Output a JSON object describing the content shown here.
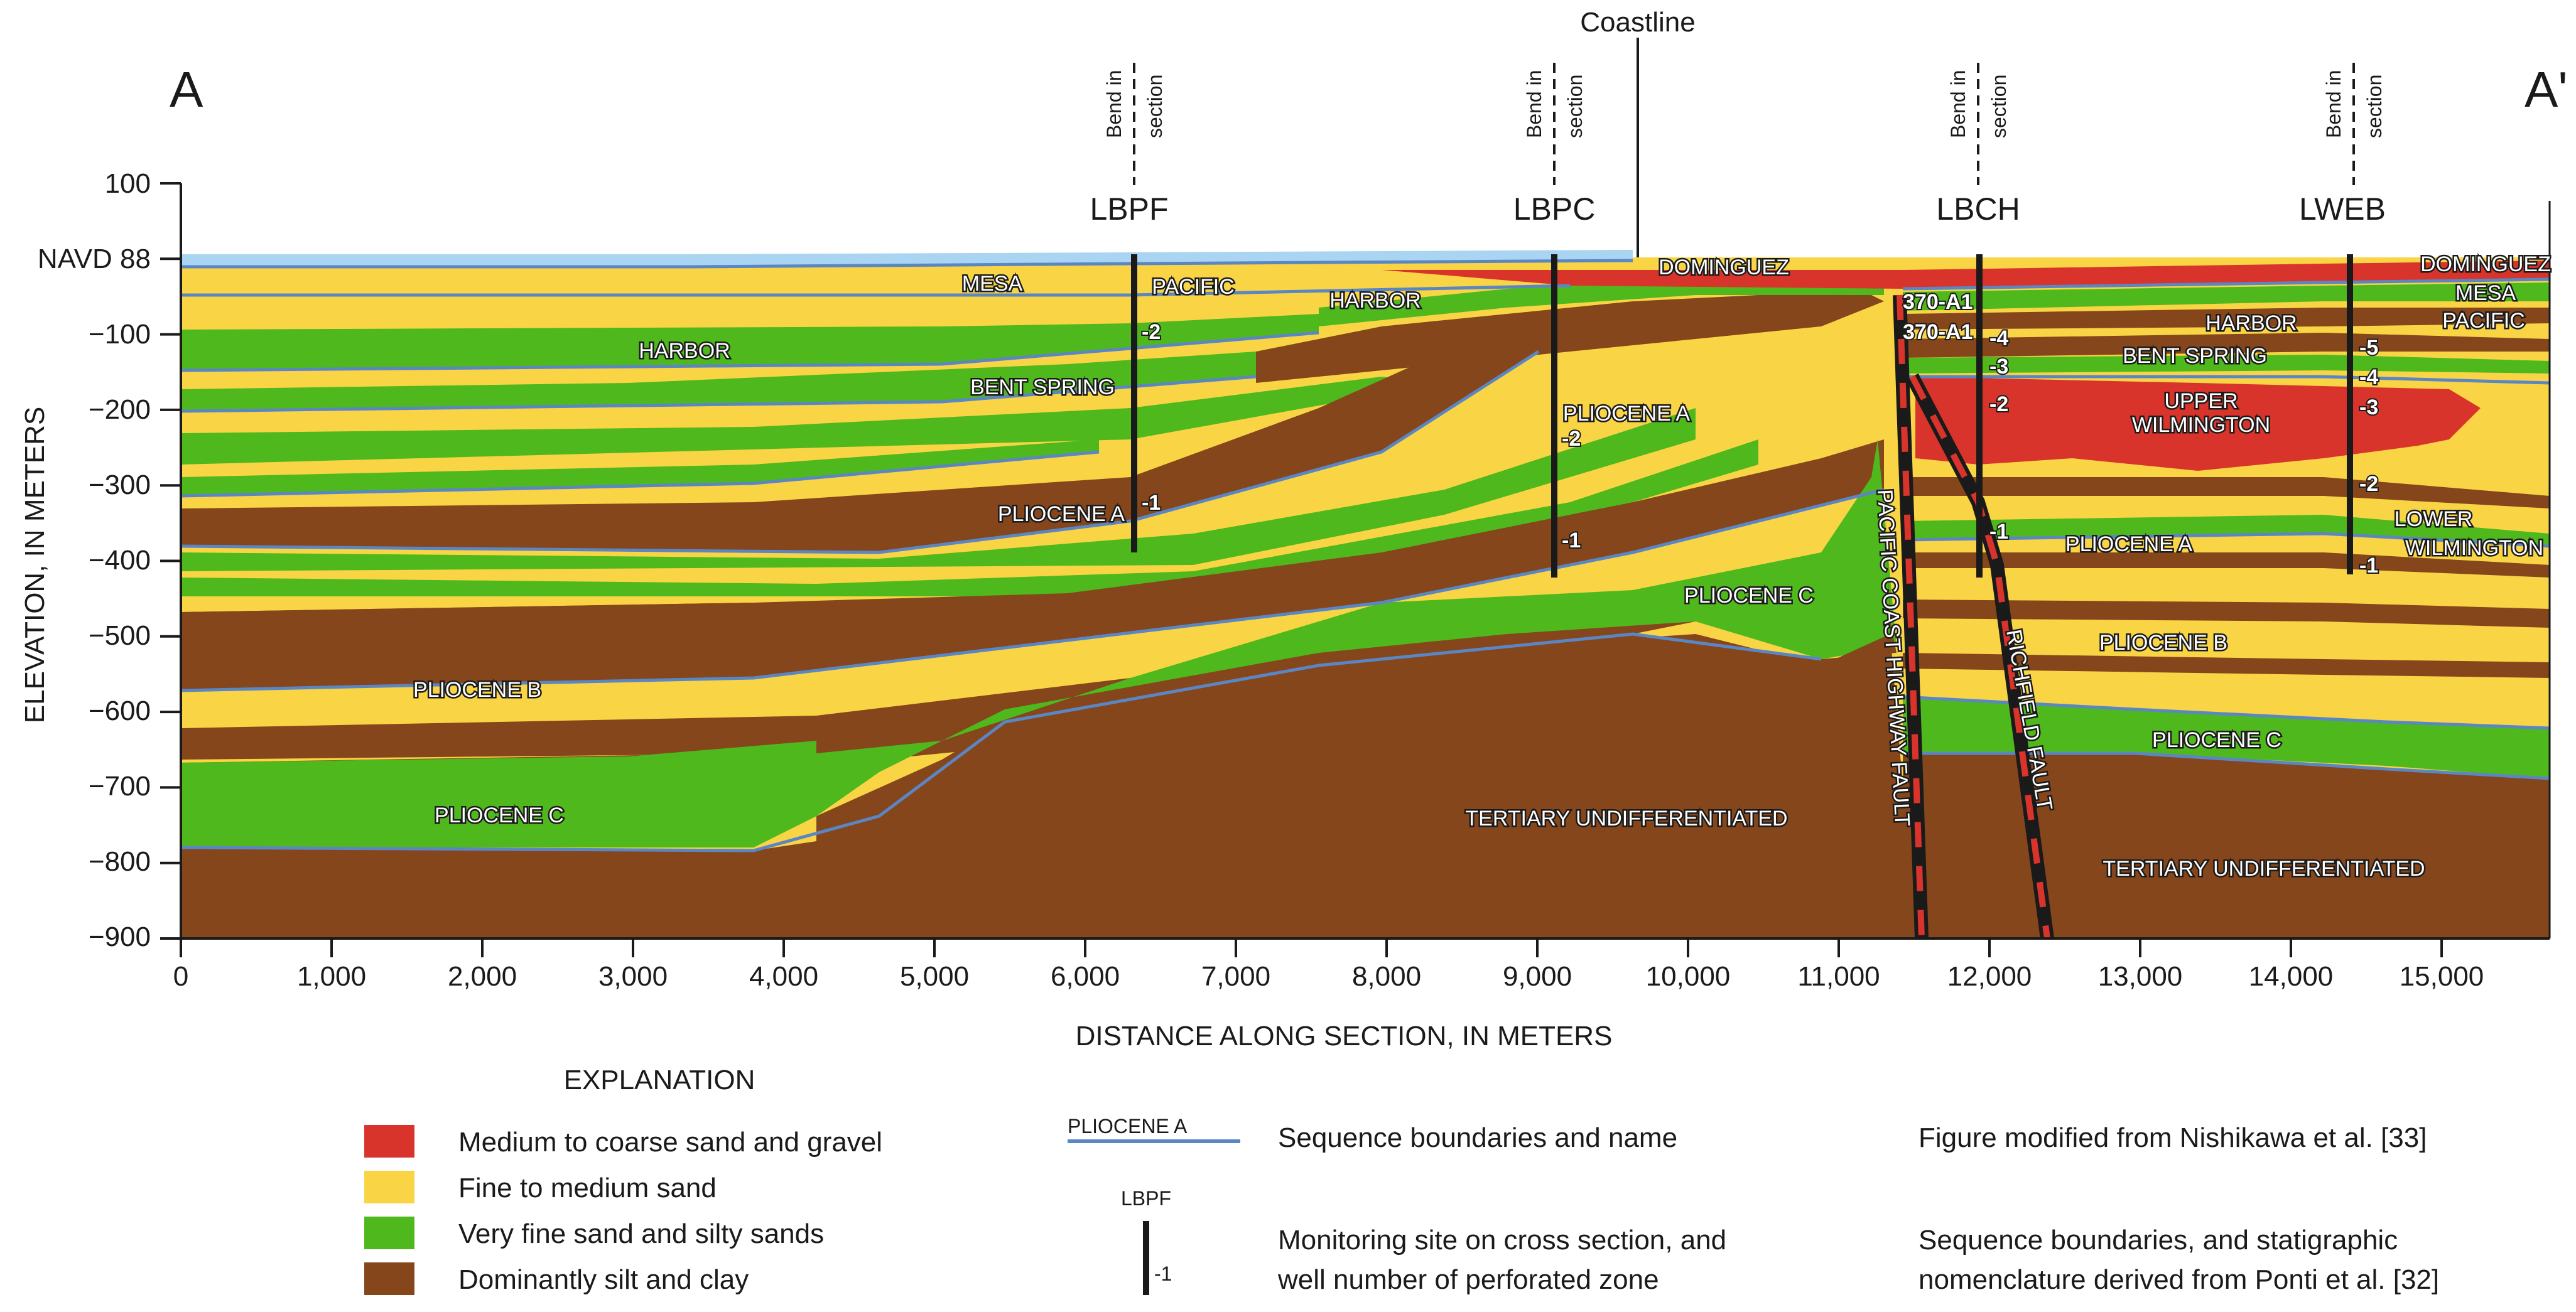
{
  "section_ends": {
    "left": "A",
    "right": "A'"
  },
  "coastline_label": "Coastline",
  "bend_label": [
    "Bend in",
    "section"
  ],
  "axes": {
    "y_title": "ELEVATION, IN METERS",
    "x_title": "DISTANCE ALONG SECTION, IN METERS",
    "y_ticks": [
      "100",
      "NAVD 88",
      "−100",
      "−200",
      "−300",
      "−400",
      "−500",
      "−600",
      "−700",
      "−800",
      "−900"
    ],
    "x_ticks": [
      "0",
      "1,000",
      "2,000",
      "3,000",
      "4,000",
      "5,000",
      "6,000",
      "7,000",
      "8,000",
      "9,000",
      "10,000",
      "11,000",
      "12,000",
      "13,000",
      "14,000",
      "15,000"
    ]
  },
  "sites": [
    {
      "name": "LBPF",
      "zones": [
        "-2",
        "-1"
      ]
    },
    {
      "name": "LBPC",
      "zones": [
        "-2",
        "-1"
      ]
    },
    {
      "name": "LBCH",
      "zones": [
        "-4",
        "-3",
        "-2",
        "-1"
      ]
    },
    {
      "name": "LWEB",
      "zones": [
        "-5",
        "-4",
        "-3",
        "-2",
        "-1"
      ]
    }
  ],
  "well_labels": [
    "370-A1",
    "370-A1"
  ],
  "unit_labels": {
    "mesa_w": "MESA",
    "pacific_w": "PACIFIC",
    "harbor_mid": "HARBOR",
    "harbor_w": "HARBOR",
    "bent_spring_w": "BENT SPRING",
    "pliocene_a_w": "PLIOCENE A",
    "pliocene_b_w": "PLIOCENE B",
    "pliocene_c_w": "PLIOCENE C",
    "dominguez_c": "DOMINGUEZ",
    "pliocene_a_c": "PLIOCENE A",
    "pliocene_c_c": "PLIOCENE C",
    "tertiary_c": "TERTIARY UNDIFFERENTIATED",
    "harbor_e": "HARBOR",
    "bent_spring_e": "BENT SPRING",
    "upper": "UPPER",
    "wilmington": "WILMINGTON",
    "lower": "LOWER",
    "wilmington_low": "WILMINGTON",
    "pliocene_a_e": "PLIOCENE A",
    "pliocene_b_e": "PLIOCENE B",
    "pliocene_c_e": "PLIOCENE C",
    "tertiary_e": "TERTIARY UNDIFFERENTIATED",
    "dominguez_e": "DOMINGUEZ",
    "mesa_e": "MESA",
    "pacific_e": "PACIFIC"
  },
  "faults": {
    "pch": "PACIFIC COAST HIGHWAY FAULT",
    "richfield": "RICHFIELD FAULT"
  },
  "explanation": {
    "title": "EXPLANATION",
    "swatches": [
      {
        "label": "Medium to coarse sand and gravel",
        "color": "#d9342b"
      },
      {
        "label": "Fine to medium sand",
        "color": "#f9d545"
      },
      {
        "label": "Very fine sand and silty sands",
        "color": "#4fb81c"
      },
      {
        "label": "Dominantly silt and clay",
        "color": "#85461c"
      }
    ],
    "sequence_sample": "PLIOCENE A",
    "sequence_text": "Sequence boundaries and name",
    "site_sample": "LBPF",
    "site_zone_sample": "-1",
    "site_text": [
      "Monitoring site on cross section, and",
      "well number of perforated zone"
    ],
    "note_1": "Figure modified from Nishikawa et al. [33]",
    "note_2": [
      "Sequence boundaries, and statigraphic",
      "nomenclature derived from Ponti et al. [32]"
    ]
  },
  "colors": {
    "gravel": "#d9342b",
    "sand": "#f9d545",
    "silty": "#4fb81c",
    "clay": "#85461c",
    "water": "#a9d4f2",
    "boundary": "#5b86c4"
  }
}
